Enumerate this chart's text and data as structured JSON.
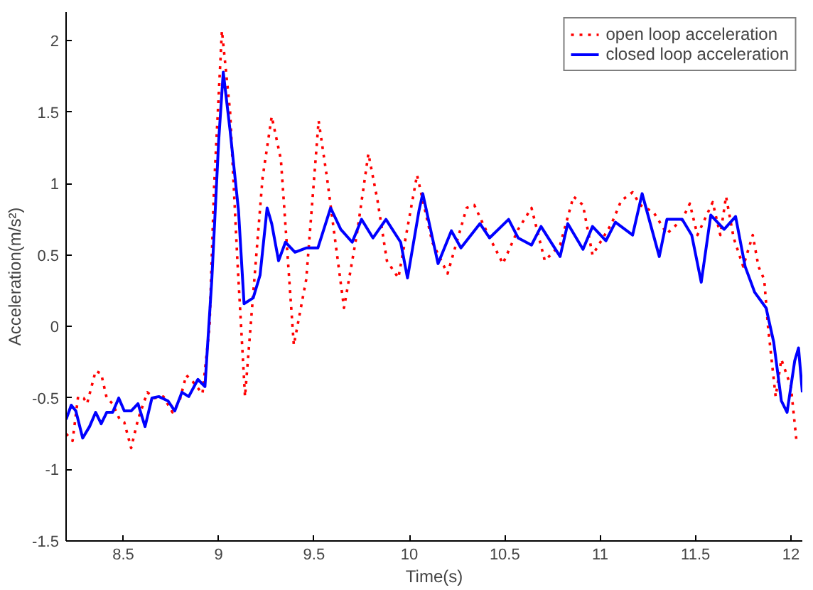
{
  "chart_data": {
    "type": "line",
    "xlabel": "Time(s)",
    "ylabel": "Acceleration(m/s²)",
    "xlim": [
      8.2,
      12.06
    ],
    "ylim": [
      -1.5,
      2.2
    ],
    "xticks": [
      8.5,
      9,
      9.5,
      10,
      10.5,
      11,
      11.5,
      12
    ],
    "yticks": [
      -1.5,
      -1,
      -0.5,
      0,
      0.5,
      1,
      1.5,
      2
    ],
    "grid": false,
    "legend": "top right",
    "series": [
      {
        "name": "open loop acceleration",
        "color": "#ff0000",
        "line_style": "dotted",
        "x": [
          8.2,
          8.234,
          8.263,
          8.292,
          8.31,
          8.355,
          8.384,
          8.413,
          8.444,
          8.481,
          8.505,
          8.541,
          8.577,
          8.626,
          8.662,
          8.71,
          8.758,
          8.795,
          8.83,
          8.867,
          8.915,
          8.952,
          8.976,
          9.017,
          9.06,
          9.097,
          9.138,
          9.181,
          9.23,
          9.278,
          9.326,
          9.394,
          9.459,
          9.524,
          9.568,
          9.657,
          9.725,
          9.785,
          9.833,
          9.882,
          9.942,
          10.04,
          10.12,
          10.2,
          10.3,
          10.34,
          10.41,
          10.49,
          10.57,
          10.64,
          10.71,
          10.79,
          10.86,
          10.91,
          10.96,
          11.06,
          11.11,
          11.17,
          11.21,
          11.28,
          11.35,
          11.43,
          11.47,
          11.51,
          11.59,
          11.63,
          11.66,
          11.7,
          11.75,
          11.8,
          11.83,
          11.86,
          11.88,
          11.92,
          11.95,
          12.0,
          12.03
        ],
        "values": [
          -0.75,
          -0.8,
          -0.49,
          -0.5,
          -0.54,
          -0.31,
          -0.33,
          -0.5,
          -0.54,
          -0.65,
          -0.67,
          -0.85,
          -0.65,
          -0.46,
          -0.5,
          -0.49,
          -0.6,
          -0.52,
          -0.34,
          -0.39,
          -0.47,
          0,
          0.98,
          2.07,
          1.5,
          0.49,
          -0.49,
          0.23,
          1.04,
          1.47,
          1.17,
          -0.13,
          0.33,
          1.44,
          1.04,
          0.13,
          0.65,
          1.21,
          0.88,
          0.46,
          0.34,
          1.06,
          0.59,
          0.37,
          0.83,
          0.85,
          0.65,
          0.44,
          0.68,
          0.83,
          0.46,
          0.57,
          0.91,
          0.85,
          0.5,
          0.72,
          0.88,
          0.94,
          0.85,
          0.8,
          0.65,
          0.75,
          0.86,
          0.64,
          0.87,
          0.64,
          0.91,
          0.62,
          0.42,
          0.64,
          0.42,
          0.33,
          0.0,
          -0.49,
          -0.23,
          -0.42,
          -0.81
        ]
      },
      {
        "name": "closed loop acceleration",
        "color": "#0000ff",
        "line_style": "solid",
        "x": [
          8.2,
          8.227,
          8.251,
          8.287,
          8.323,
          8.355,
          8.384,
          8.413,
          8.444,
          8.476,
          8.505,
          8.541,
          8.577,
          8.614,
          8.65,
          8.686,
          8.734,
          8.77,
          8.807,
          8.843,
          8.891,
          8.928,
          8.964,
          9.0,
          9.024,
          9.06,
          9.104,
          9.133,
          9.181,
          9.217,
          9.254,
          9.278,
          9.314,
          9.35,
          9.4,
          9.459,
          9.52,
          9.587,
          9.64,
          9.7,
          9.749,
          9.809,
          9.877,
          9.954,
          9.99,
          10.05,
          10.07,
          10.15,
          10.22,
          10.27,
          10.37,
          10.42,
          10.52,
          10.57,
          10.64,
          10.69,
          10.79,
          10.83,
          10.91,
          10.96,
          11.03,
          11.08,
          11.17,
          11.22,
          11.31,
          11.35,
          11.43,
          11.48,
          11.53,
          11.58,
          11.65,
          11.71,
          11.76,
          11.81,
          11.87,
          11.91,
          11.95,
          11.98,
          12.02,
          12.04,
          12.06
        ],
        "values": [
          -0.65,
          -0.55,
          -0.59,
          -0.78,
          -0.7,
          -0.6,
          -0.68,
          -0.6,
          -0.6,
          -0.5,
          -0.59,
          -0.59,
          -0.54,
          -0.7,
          -0.5,
          -0.49,
          -0.52,
          -0.59,
          -0.46,
          -0.49,
          -0.37,
          -0.42,
          0.33,
          1.3,
          1.78,
          1.37,
          0.81,
          0.16,
          0.2,
          0.36,
          0.83,
          0.72,
          0.46,
          0.59,
          0.52,
          0.55,
          0.55,
          0.83,
          0.68,
          0.59,
          0.75,
          0.62,
          0.75,
          0.59,
          0.34,
          0.81,
          0.93,
          0.44,
          0.67,
          0.55,
          0.72,
          0.62,
          0.75,
          0.62,
          0.57,
          0.7,
          0.49,
          0.72,
          0.54,
          0.7,
          0.6,
          0.73,
          0.64,
          0.93,
          0.49,
          0.75,
          0.75,
          0.64,
          0.31,
          0.78,
          0.68,
          0.77,
          0.42,
          0.24,
          0.13,
          -0.11,
          -0.52,
          -0.6,
          -0.24,
          -0.15,
          -0.46
        ]
      }
    ]
  }
}
